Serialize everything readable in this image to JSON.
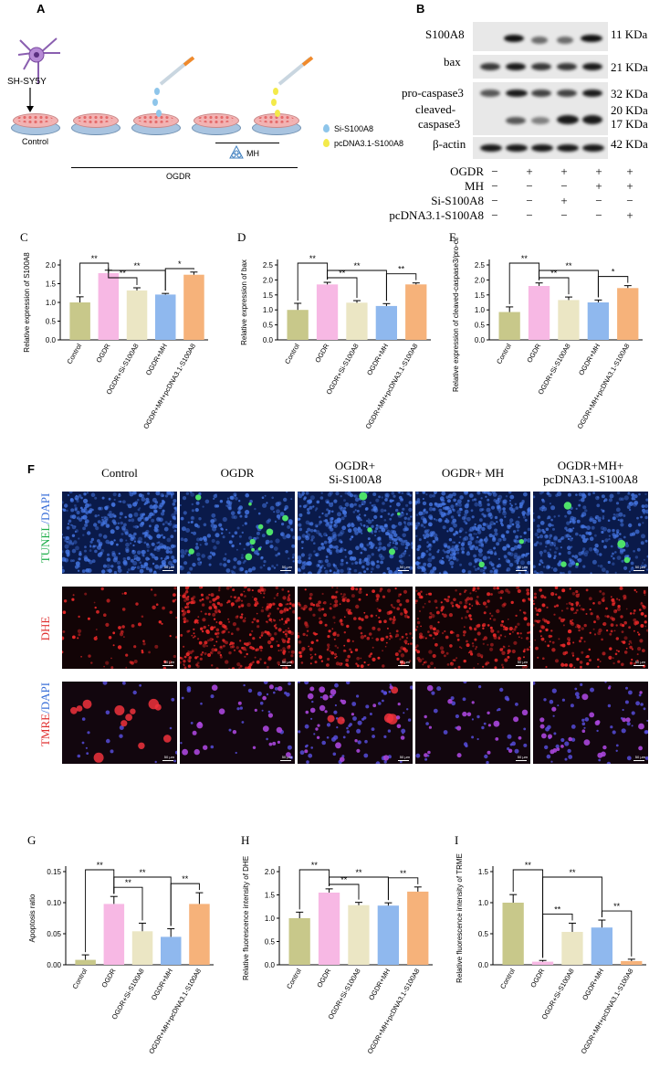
{
  "panel_labels": {
    "A": "A",
    "B": "B",
    "C": "C",
    "D": "D",
    "E": "E",
    "F": "F",
    "G": "G",
    "H": "H",
    "I": "I"
  },
  "panelA": {
    "cell_line": "SH-SY5Y",
    "control": "Control",
    "ogdr": "OGDR",
    "mh": "MH",
    "legend": [
      {
        "label": "Si-S100A8",
        "color": "#8ec5ea"
      },
      {
        "label": "pcDNA3.1-S100A8",
        "color": "#f3ea4a"
      }
    ]
  },
  "panelB": {
    "proteins": [
      "S100A8",
      "bax",
      "pro-caspase3",
      "cleaved-",
      "caspase3",
      "β-actin"
    ],
    "kda": [
      "11 KDa",
      "21 KDa",
      "32 KDa",
      "20 KDa",
      "17 KDa",
      "42 KDa"
    ],
    "treatments": [
      {
        "name": "OGDR",
        "signs": [
          "−",
          "+",
          "+",
          "+",
          "+"
        ]
      },
      {
        "name": "MH",
        "signs": [
          "−",
          "−",
          "−",
          "+",
          "+"
        ]
      },
      {
        "name": "Si-S100A8",
        "signs": [
          "−",
          "−",
          "+",
          "−",
          "−"
        ]
      },
      {
        "name": "pcDNA3.1-S100A8",
        "signs": [
          "−",
          "−",
          "−",
          "−",
          "+"
        ]
      }
    ]
  },
  "panelF": {
    "columns": [
      "Control",
      "OGDR",
      "OGDR+",
      "Si-S100A8",
      "OGDR+ MH",
      "OGDR+MH+",
      "pcDNA3.1-S100A8"
    ],
    "rows": {
      "tunel_a": "TUNEL",
      "tunel_b": "/DAPI",
      "dhe": "DHE",
      "tmre_a": "TMRE",
      "tmre_b": "/DAPI"
    },
    "scale": "50 μm",
    "colors": {
      "tunel": "#1fae4a",
      "dapi": "#3a6fd8",
      "dhe": "#e03030",
      "tmre": "#e03030"
    }
  },
  "chart_data": [
    {
      "id": "C",
      "type": "bar",
      "categories": [
        "Control",
        "OGDR",
        "OGDR+Si-S100A8",
        "OGDR+MH",
        "OGDR+MH+pcDNA3.1-S100A8"
      ],
      "values": [
        1.0,
        1.78,
        1.32,
        1.21,
        1.74
      ],
      "errors": [
        0.15,
        0.08,
        0.07,
        0.03,
        0.07
      ],
      "ylabel": "Relative expression of S100A8",
      "ylim": [
        0,
        2.0
      ],
      "yticks": [
        "0.0",
        "0.5",
        "1.0",
        "1.5",
        "2.0"
      ],
      "significance": [
        {
          "a": 0,
          "b": 1,
          "label": "**"
        },
        {
          "a": 1,
          "b": 2,
          "label": "**"
        },
        {
          "a": 1,
          "b": 3,
          "label": "**"
        },
        {
          "a": 3,
          "b": 4,
          "label": "*"
        }
      ],
      "colors": [
        "#c8c88a",
        "#f7b8e4",
        "#ebe6c4",
        "#8fb8ee",
        "#f6b27a"
      ]
    },
    {
      "id": "D",
      "type": "bar",
      "categories": [
        "Control",
        "OGDR",
        "OGDR+Si-S100A8",
        "OGDR+MH",
        "OGDR+MH+pcDNA3.1-S100A8"
      ],
      "values": [
        1.0,
        1.85,
        1.24,
        1.13,
        1.85
      ],
      "errors": [
        0.22,
        0.07,
        0.07,
        0.08,
        0.05
      ],
      "ylabel": "Relative expression of bax",
      "ylim": [
        0,
        2.5
      ],
      "yticks": [
        "0.0",
        "0.5",
        "1.0",
        "1.5",
        "2.0",
        "2.5"
      ],
      "significance": [
        {
          "a": 0,
          "b": 1,
          "label": "**"
        },
        {
          "a": 1,
          "b": 2,
          "label": "**"
        },
        {
          "a": 1,
          "b": 3,
          "label": "**"
        },
        {
          "a": 3,
          "b": 4,
          "label": "**"
        }
      ],
      "colors": [
        "#c8c88a",
        "#f7b8e4",
        "#ebe6c4",
        "#8fb8ee",
        "#f6b27a"
      ]
    },
    {
      "id": "E",
      "type": "bar",
      "categories": [
        "Control",
        "OGDR",
        "OGDR+Si-S100A8",
        "OGDR+MH",
        "OGDR+MH+pcDNA3.1-S100A8"
      ],
      "values": [
        0.93,
        1.8,
        1.33,
        1.25,
        1.73
      ],
      "errors": [
        0.17,
        0.1,
        0.1,
        0.08,
        0.08
      ],
      "ylabel": "Relative expression of cleaved-caspase3/pro-caspase3",
      "ylim": [
        0,
        2.5
      ],
      "yticks": [
        "0.0",
        "0.5",
        "1.0",
        "1.5",
        "2.0",
        "2.5"
      ],
      "significance": [
        {
          "a": 0,
          "b": 1,
          "label": "**"
        },
        {
          "a": 1,
          "b": 2,
          "label": "**"
        },
        {
          "a": 1,
          "b": 3,
          "label": "**"
        },
        {
          "a": 3,
          "b": 4,
          "label": "*"
        }
      ],
      "colors": [
        "#c8c88a",
        "#f7b8e4",
        "#ebe6c4",
        "#8fb8ee",
        "#f6b27a"
      ]
    },
    {
      "id": "G",
      "type": "bar",
      "categories": [
        "Control",
        "OGDR",
        "OGDR+Si-S100A8",
        "OGDR+MH",
        "OGDR+MH+pcDNA3.1-S100A8"
      ],
      "values": [
        0.008,
        0.098,
        0.054,
        0.045,
        0.098
      ],
      "errors": [
        0.008,
        0.012,
        0.013,
        0.013,
        0.018
      ],
      "ylabel": "Apoptosis ratio",
      "ylim": [
        0,
        0.15
      ],
      "yticks": [
        "0.00",
        "0.05",
        "0.10",
        "0.15"
      ],
      "significance": [
        {
          "a": 0,
          "b": 1,
          "label": "**"
        },
        {
          "a": 1,
          "b": 2,
          "label": "**"
        },
        {
          "a": 1,
          "b": 3,
          "label": "**"
        },
        {
          "a": 3,
          "b": 4,
          "label": "**"
        }
      ],
      "colors": [
        "#c8c88a",
        "#f7b8e4",
        "#ebe6c4",
        "#8fb8ee",
        "#f6b27a"
      ]
    },
    {
      "id": "H",
      "type": "bar",
      "categories": [
        "Control",
        "OGDR",
        "OGDR+Si-S100A8",
        "OGDR+MH",
        "OGDR+MH+pcDNA3.1-S100A8"
      ],
      "values": [
        1.0,
        1.55,
        1.28,
        1.27,
        1.57
      ],
      "errors": [
        0.13,
        0.08,
        0.06,
        0.06,
        0.1
      ],
      "ylabel": "Relative fluorescence intensity of DHE",
      "ylim": [
        0,
        2.0
      ],
      "yticks": [
        "0.0",
        "0.5",
        "1.0",
        "1.5",
        "2.0"
      ],
      "significance": [
        {
          "a": 0,
          "b": 1,
          "label": "**"
        },
        {
          "a": 1,
          "b": 2,
          "label": "**"
        },
        {
          "a": 1,
          "b": 3,
          "label": "**"
        },
        {
          "a": 3,
          "b": 4,
          "label": "**"
        }
      ],
      "colors": [
        "#c8c88a",
        "#f7b8e4",
        "#ebe6c4",
        "#8fb8ee",
        "#f6b27a"
      ]
    },
    {
      "id": "I",
      "type": "bar",
      "categories": [
        "Control",
        "OGDR",
        "OGDR+Si-S100A8",
        "OGDR+MH",
        "OGDR+MH+pcDNA3.1-S100A8"
      ],
      "values": [
        1.0,
        0.05,
        0.53,
        0.6,
        0.06
      ],
      "errors": [
        0.13,
        0.02,
        0.14,
        0.12,
        0.03
      ],
      "ylabel": "Relative fluorescence intensity of TRME",
      "ylim": [
        0,
        1.5
      ],
      "yticks": [
        "0.0",
        "0.5",
        "1.0",
        "1.5"
      ],
      "significance": [
        {
          "a": 0,
          "b": 1,
          "label": "**"
        },
        {
          "a": 1,
          "b": 2,
          "label": "**"
        },
        {
          "a": 1,
          "b": 3,
          "label": "**"
        },
        {
          "a": 3,
          "b": 4,
          "label": "**"
        }
      ],
      "colors": [
        "#c8c88a",
        "#f7b8e4",
        "#ebe6c4",
        "#8fb8ee",
        "#f6b27a"
      ]
    }
  ]
}
